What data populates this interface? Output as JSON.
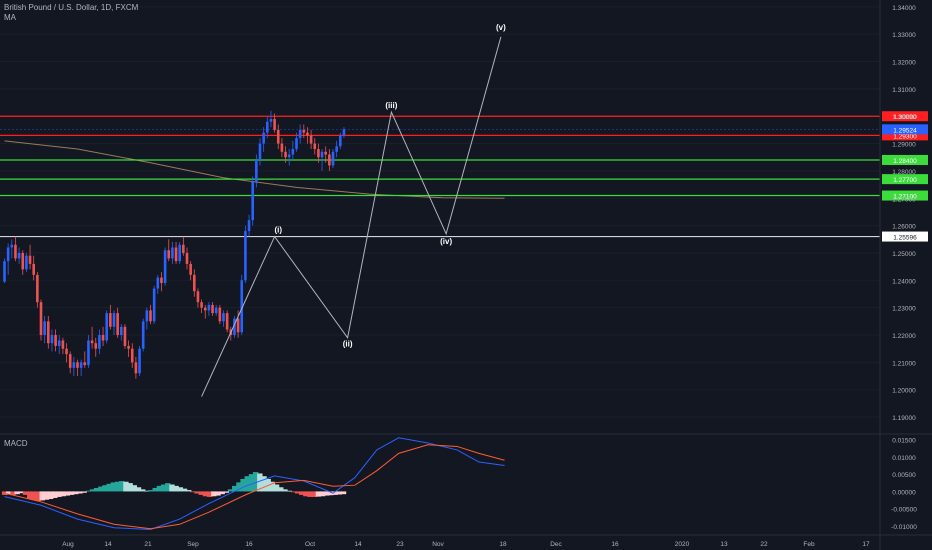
{
  "header": {
    "symbol": "British Pound / U.S. Dollar, 1D, FXCM",
    "indicator": "MA"
  },
  "macd_panel": {
    "label": "MACD"
  },
  "colors": {
    "background": "#131722",
    "candle_up": "#2962ff",
    "candle_down": "#ef5350",
    "resistance": "#ff1f1f",
    "support": "#3cdc3c",
    "pivot": "#d1d4dc",
    "ma": "#9a7a5a",
    "macd_line": "#2962ff",
    "signal_line": "#ff5c33",
    "hist_up": "#26a69a",
    "hist_up_light": "#b2dfdb",
    "hist_down": "#ef5350",
    "hist_down_light": "#ffcdd2",
    "axis_text": "#b2b5be"
  },
  "chart_data": {
    "type": "candlestick",
    "price_axis": {
      "range": [
        1.1838,
        1.3425
      ],
      "ticks": [
        "1.34000",
        "1.33000",
        "1.32000",
        "1.31000",
        "1.30000",
        "1.29000",
        "1.28000",
        "1.27000",
        "1.26000",
        "1.25000",
        "1.24000",
        "1.23000",
        "1.22000",
        "1.21000",
        "1.20000",
        "1.19000"
      ]
    },
    "macd_axis": {
      "range": [
        -0.0126,
        0.0166
      ],
      "ticks": [
        "0.01500",
        "0.01000",
        "0.00500",
        "0.00000",
        "-0.00500",
        "-0.01000"
      ]
    },
    "time_axis": [
      "Aug",
      "14",
      "21",
      "Sep",
      "16",
      "Oct",
      "14",
      "23",
      "Nov",
      "18",
      "Dec",
      "16",
      "2020",
      "13",
      "22",
      "Feb",
      "17"
    ],
    "horizontal_levels": [
      {
        "price": 1.3,
        "label": "1.30000",
        "kind": "resistance"
      },
      {
        "price": 1.293,
        "label": "1.29300",
        "kind": "resistance"
      },
      {
        "price": 1.2952,
        "label": "1.29524",
        "kind": "last"
      },
      {
        "price": 1.284,
        "label": "1.28400",
        "kind": "support"
      },
      {
        "price": 1.277,
        "label": "1.27700",
        "kind": "support"
      },
      {
        "price": 1.271,
        "label": "1.27100",
        "kind": "support"
      },
      {
        "price": 1.256,
        "label": "1.25596",
        "kind": "pivot"
      }
    ],
    "wave_labels": [
      {
        "text": "(i)",
        "bar": 75,
        "price": 1.256
      },
      {
        "text": "(ii)",
        "bar": 94,
        "price": 1.2195
      },
      {
        "text": "(iii)",
        "bar": 106,
        "price": 1.3015
      },
      {
        "text": "(iv)",
        "bar": 121,
        "price": 1.257
      },
      {
        "text": "(v)",
        "bar": 136,
        "price": 1.33
      }
    ],
    "wave_path": [
      {
        "bar": 54,
        "price": 1.1975
      },
      {
        "bar": 74,
        "price": 1.256
      },
      {
        "bar": 94,
        "price": 1.219
      },
      {
        "bar": 106,
        "price": 1.3015
      },
      {
        "bar": 121,
        "price": 1.257
      },
      {
        "bar": 136,
        "price": 1.329
      }
    ],
    "ma_series": [
      {
        "bar": 0,
        "price": 1.291
      },
      {
        "bar": 20,
        "price": 1.288
      },
      {
        "bar": 40,
        "price": 1.283
      },
      {
        "bar": 60,
        "price": 1.2775
      },
      {
        "bar": 80,
        "price": 1.274
      },
      {
        "bar": 100,
        "price": 1.2715
      },
      {
        "bar": 120,
        "price": 1.2702
      },
      {
        "bar": 137,
        "price": 1.27
      }
    ],
    "candles": [
      [
        1.2395,
        1.248,
        1.239,
        1.247
      ],
      [
        1.247,
        1.2535,
        1.242,
        1.252
      ],
      [
        1.252,
        1.255,
        1.248,
        1.253
      ],
      [
        1.253,
        1.256,
        1.247,
        1.248
      ],
      [
        1.248,
        1.252,
        1.246,
        1.25
      ],
      [
        1.25,
        1.251,
        1.242,
        1.244
      ],
      [
        1.244,
        1.25,
        1.243,
        1.249
      ],
      [
        1.249,
        1.253,
        1.244,
        1.246
      ],
      [
        1.246,
        1.249,
        1.24,
        1.242
      ],
      [
        1.242,
        1.243,
        1.23,
        1.232
      ],
      [
        1.232,
        1.233,
        1.218,
        1.22
      ],
      [
        1.22,
        1.227,
        1.217,
        1.225
      ],
      [
        1.225,
        1.227,
        1.215,
        1.217
      ],
      [
        1.217,
        1.222,
        1.214,
        1.22
      ],
      [
        1.22,
        1.222,
        1.214,
        1.216
      ],
      [
        1.216,
        1.22,
        1.213,
        1.218
      ],
      [
        1.218,
        1.219,
        1.213,
        1.215
      ],
      [
        1.215,
        1.217,
        1.21,
        1.213
      ],
      [
        1.213,
        1.214,
        1.206,
        1.208
      ],
      [
        1.208,
        1.212,
        1.205,
        1.21
      ],
      [
        1.21,
        1.211,
        1.205,
        1.208
      ],
      [
        1.208,
        1.211,
        1.205,
        1.21
      ],
      [
        1.21,
        1.214,
        1.208,
        1.209
      ],
      [
        1.209,
        1.22,
        1.208,
        1.218
      ],
      [
        1.218,
        1.223,
        1.215,
        1.217
      ],
      [
        1.217,
        1.219,
        1.212,
        1.215
      ],
      [
        1.215,
        1.222,
        1.213,
        1.22
      ],
      [
        1.22,
        1.223,
        1.216,
        1.218
      ],
      [
        1.218,
        1.229,
        1.217,
        1.228
      ],
      [
        1.228,
        1.231,
        1.222,
        1.223
      ],
      [
        1.223,
        1.229,
        1.22,
        1.228
      ],
      [
        1.228,
        1.23,
        1.219,
        1.22
      ],
      [
        1.22,
        1.224,
        1.218,
        1.223
      ],
      [
        1.223,
        1.224,
        1.215,
        1.216
      ],
      [
        1.216,
        1.218,
        1.212,
        1.215
      ],
      [
        1.215,
        1.217,
        1.208,
        1.21
      ],
      [
        1.21,
        1.212,
        1.204,
        1.206
      ],
      [
        1.206,
        1.216,
        1.205,
        1.215
      ],
      [
        1.215,
        1.226,
        1.214,
        1.225
      ],
      [
        1.225,
        1.23,
        1.222,
        1.229
      ],
      [
        1.229,
        1.231,
        1.224,
        1.225
      ],
      [
        1.225,
        1.238,
        1.224,
        1.237
      ],
      [
        1.237,
        1.242,
        1.235,
        1.241
      ],
      [
        1.241,
        1.243,
        1.236,
        1.239
      ],
      [
        1.239,
        1.252,
        1.238,
        1.251
      ],
      [
        1.251,
        1.255,
        1.247,
        1.248
      ],
      [
        1.248,
        1.254,
        1.246,
        1.252
      ],
      [
        1.252,
        1.254,
        1.246,
        1.247
      ],
      [
        1.247,
        1.254,
        1.246,
        1.253
      ],
      [
        1.253,
        1.256,
        1.249,
        1.25
      ],
      [
        1.25,
        1.252,
        1.244,
        1.246
      ],
      [
        1.246,
        1.247,
        1.24,
        1.242
      ],
      [
        1.242,
        1.244,
        1.234,
        1.236
      ],
      [
        1.236,
        1.237,
        1.23,
        1.232
      ],
      [
        1.232,
        1.233,
        1.228,
        1.23
      ],
      [
        1.23,
        1.231,
        1.226,
        1.229
      ],
      [
        1.229,
        1.232,
        1.227,
        1.231
      ],
      [
        1.231,
        1.232,
        1.227,
        1.228
      ],
      [
        1.228,
        1.231,
        1.227,
        1.23
      ],
      [
        1.23,
        1.231,
        1.224,
        1.225
      ],
      [
        1.225,
        1.229,
        1.223,
        1.228
      ],
      [
        1.228,
        1.229,
        1.221,
        1.222
      ],
      [
        1.222,
        1.223,
        1.218,
        1.22
      ],
      [
        1.22,
        1.227,
        1.219,
        1.226
      ],
      [
        1.226,
        1.229,
        1.219,
        1.221
      ],
      [
        1.221,
        1.242,
        1.22,
        1.24
      ],
      [
        1.24,
        1.26,
        1.239,
        1.258
      ],
      [
        1.258,
        1.264,
        1.256,
        1.262
      ],
      [
        1.262,
        1.278,
        1.26,
        1.276
      ],
      [
        1.276,
        1.286,
        1.274,
        1.284
      ],
      [
        1.284,
        1.292,
        1.282,
        1.29
      ],
      [
        1.29,
        1.296,
        1.287,
        1.294
      ],
      [
        1.294,
        1.3,
        1.292,
        1.298
      ],
      [
        1.298,
        1.302,
        1.296,
        1.299
      ],
      [
        1.299,
        1.301,
        1.294,
        1.295
      ],
      [
        1.295,
        1.297,
        1.288,
        1.29
      ],
      [
        1.29,
        1.292,
        1.285,
        1.287
      ],
      [
        1.287,
        1.289,
        1.283,
        1.285
      ],
      [
        1.285,
        1.288,
        1.282,
        1.286
      ],
      [
        1.286,
        1.291,
        1.284,
        1.288
      ],
      [
        1.288,
        1.294,
        1.287,
        1.292
      ],
      [
        1.292,
        1.297,
        1.29,
        1.295
      ],
      [
        1.295,
        1.297,
        1.292,
        1.294
      ],
      [
        1.294,
        1.296,
        1.29,
        1.293
      ],
      [
        1.293,
        1.295,
        1.288,
        1.29
      ],
      [
        1.29,
        1.292,
        1.286,
        1.288
      ],
      [
        1.288,
        1.29,
        1.283,
        1.285
      ],
      [
        1.285,
        1.288,
        1.28,
        1.287
      ],
      [
        1.287,
        1.289,
        1.283,
        1.286
      ],
      [
        1.286,
        1.288,
        1.28,
        1.282
      ],
      [
        1.282,
        1.288,
        1.281,
        1.287
      ],
      [
        1.287,
        1.291,
        1.285,
        1.289
      ],
      [
        1.289,
        1.294,
        1.288,
        1.293
      ],
      [
        1.293,
        1.296,
        1.292,
        1.2952
      ]
    ],
    "macd_hist": [
      -0.001,
      -0.0009,
      -0.0011,
      -0.0008,
      -0.0005,
      -0.001,
      -0.0022,
      -0.0025,
      -0.0028,
      -0.0026,
      -0.0024,
      -0.0022,
      -0.0019,
      -0.0016,
      -0.0014,
      -0.0012,
      -0.001,
      -0.0008,
      -0.0006,
      -0.0004,
      0.0002,
      0.0006,
      0.001,
      0.0014,
      0.0018,
      0.0022,
      0.0026,
      0.0028,
      0.003,
      0.0028,
      0.0024,
      0.0018,
      0.0012,
      0.0006,
      0.0002,
      0.0004,
      0.001,
      0.0016,
      0.002,
      0.0024,
      0.002,
      0.0016,
      0.0012,
      0.0008,
      0.0004,
      -0.0002,
      -0.0006,
      -0.001,
      -0.0014,
      -0.0016,
      -0.0014,
      -0.0012,
      -0.0008,
      -0.0004,
      0.0006,
      0.0016,
      0.0026,
      0.0036,
      0.0044,
      0.005,
      0.0056,
      0.0052,
      0.0044,
      0.0036,
      0.0028,
      0.002,
      0.0012,
      0.0006,
      0.0002,
      -0.0002,
      -0.0006,
      -0.001,
      -0.0014,
      -0.0016,
      -0.0016,
      -0.0015,
      -0.0014,
      -0.0012,
      -0.0011,
      -0.001,
      -0.0009,
      -0.0008
    ],
    "macd_line": [
      {
        "bar": 0,
        "v": -0.0015
      },
      {
        "bar": 10,
        "v": -0.004
      },
      {
        "bar": 20,
        "v": -0.008
      },
      {
        "bar": 30,
        "v": -0.0105
      },
      {
        "bar": 40,
        "v": -0.011
      },
      {
        "bar": 48,
        "v": -0.008
      },
      {
        "bar": 56,
        "v": -0.0035
      },
      {
        "bar": 66,
        "v": 0.0015
      },
      {
        "bar": 74,
        "v": 0.0045
      },
      {
        "bar": 82,
        "v": 0.003
      },
      {
        "bar": 90,
        "v": -0.0005
      },
      {
        "bar": 96,
        "v": 0.004
      },
      {
        "bar": 102,
        "v": 0.012
      },
      {
        "bar": 108,
        "v": 0.0155
      },
      {
        "bar": 116,
        "v": 0.014
      },
      {
        "bar": 124,
        "v": 0.012
      },
      {
        "bar": 130,
        "v": 0.0085
      },
      {
        "bar": 137,
        "v": 0.0075
      }
    ],
    "signal_line": [
      {
        "bar": 0,
        "v": -0.0005
      },
      {
        "bar": 10,
        "v": -0.003
      },
      {
        "bar": 20,
        "v": -0.0065
      },
      {
        "bar": 30,
        "v": -0.0095
      },
      {
        "bar": 40,
        "v": -0.0108
      },
      {
        "bar": 48,
        "v": -0.0095
      },
      {
        "bar": 56,
        "v": -0.006
      },
      {
        "bar": 66,
        "v": -0.001
      },
      {
        "bar": 74,
        "v": 0.0025
      },
      {
        "bar": 82,
        "v": 0.0032
      },
      {
        "bar": 90,
        "v": 0.0015
      },
      {
        "bar": 96,
        "v": 0.0018
      },
      {
        "bar": 102,
        "v": 0.006
      },
      {
        "bar": 108,
        "v": 0.011
      },
      {
        "bar": 116,
        "v": 0.0135
      },
      {
        "bar": 124,
        "v": 0.013
      },
      {
        "bar": 130,
        "v": 0.011
      },
      {
        "bar": 137,
        "v": 0.009
      }
    ]
  }
}
